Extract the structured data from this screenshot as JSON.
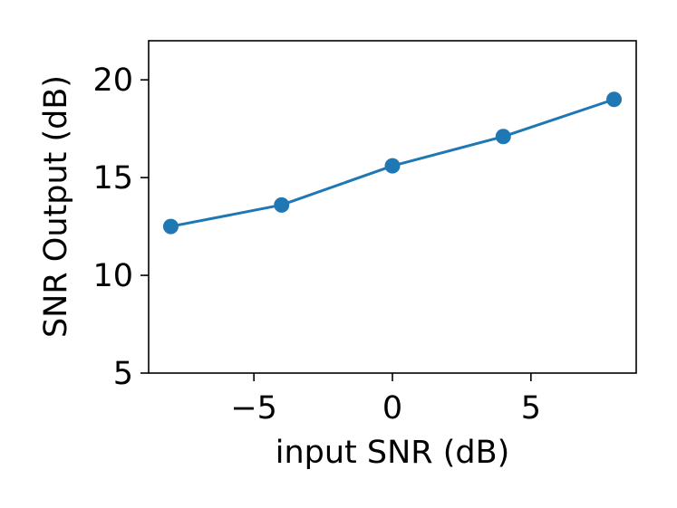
{
  "chart_data": {
    "type": "line",
    "title": "",
    "xlabel": "input SNR (dB)",
    "ylabel": "SNR Output (dB)",
    "xlim": [
      -8.8,
      8.8
    ],
    "ylim": [
      5,
      22
    ],
    "xticks": [
      -5,
      0,
      5
    ],
    "xtick_labels": [
      "−5",
      "0",
      "5"
    ],
    "yticks": [
      5,
      10,
      15,
      20
    ],
    "ytick_labels": [
      "5",
      "10",
      "15",
      "20"
    ],
    "grid": false,
    "legend": "none",
    "series": [
      {
        "x": [
          -8,
          -4,
          0,
          4,
          8
        ],
        "y": [
          12.5,
          13.6,
          15.6,
          17.1,
          19.0
        ],
        "color": "#1f77b4",
        "marker": "circle"
      }
    ]
  }
}
